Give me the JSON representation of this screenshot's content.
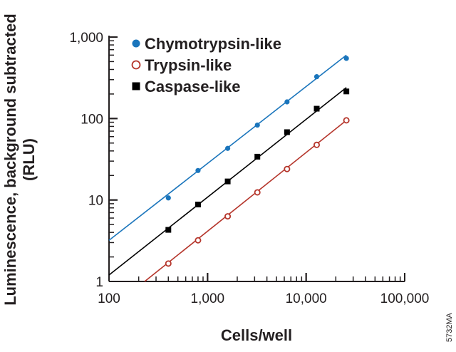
{
  "chart_data": {
    "type": "scatter",
    "xlabel": "Cells/well",
    "ylabel": [
      "Luminescence, background subtracted",
      "(RLU)"
    ],
    "xscale": "log",
    "yscale": "log",
    "xlim": [
      100,
      100000
    ],
    "ylim": [
      1,
      1000
    ],
    "xticks": [
      {
        "v": 100,
        "label": "100"
      },
      {
        "v": 1000,
        "label": "1,000"
      },
      {
        "v": 10000,
        "label": "10,000"
      },
      {
        "v": 100000,
        "label": "100,000"
      }
    ],
    "yticks": [
      {
        "v": 1,
        "label": "1"
      },
      {
        "v": 10,
        "label": "10"
      },
      {
        "v": 100,
        "label": "100"
      },
      {
        "v": 1000,
        "label": "1,000"
      }
    ],
    "grid": false,
    "legend_position": "top-left",
    "x": [
      400,
      800,
      1600,
      3200,
      6400,
      12800,
      25600
    ],
    "series": [
      {
        "name": "Chymotrypsin-like",
        "marker": "filled-circle",
        "color": "#1a75bc",
        "values": [
          10.6,
          23,
          43,
          83,
          160,
          326,
          547
        ],
        "fit_line": {
          "x": [
            100,
            25600
          ],
          "y": [
            3.2,
            600
          ]
        }
      },
      {
        "name": "Trypsin-like",
        "marker": "open-circle",
        "color": "#b5352b",
        "values": [
          1.66,
          3.2,
          6.3,
          12.4,
          24,
          47.5,
          95
        ],
        "fit_line": {
          "x": [
            230,
            25600
          ],
          "y": [
            1,
            95
          ]
        }
      },
      {
        "name": "Caspase-like",
        "marker": "filled-square",
        "color": "#000000",
        "values": [
          4.3,
          8.8,
          16.9,
          34,
          68,
          132,
          215
        ],
        "fit_line": {
          "x": [
            100,
            25600
          ],
          "y": [
            1.2,
            240
          ]
        }
      }
    ],
    "annotation": "5732MA"
  }
}
